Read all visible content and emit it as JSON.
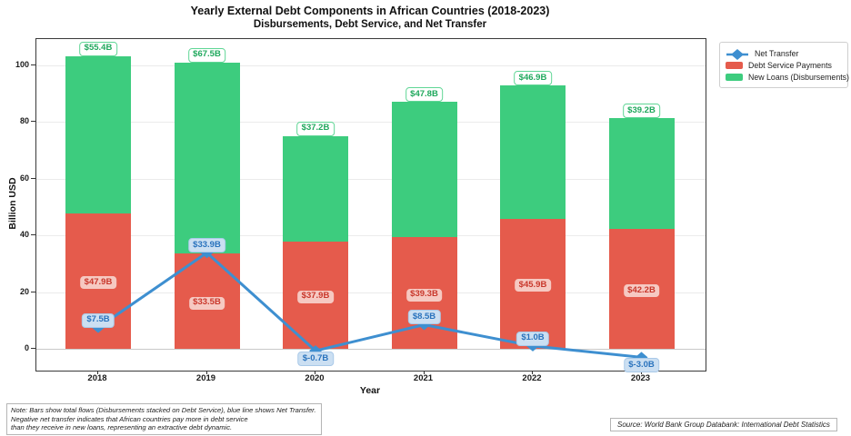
{
  "title": {
    "line1": "Yearly External Debt Components in African Countries (2018-2023)",
    "line2": "Disbursements, Debt Service, and Net Transfer"
  },
  "axes": {
    "ylabel": "Billion USD",
    "xlabel": "Year",
    "yticks": [
      0,
      20,
      40,
      60,
      80,
      100
    ]
  },
  "legend": {
    "items": [
      {
        "label": "Net Transfer",
        "marker": "diamond-line",
        "color": "#3e8fd0"
      },
      {
        "label": "Debt Service Payments",
        "marker": "square",
        "color": "#e55b4c"
      },
      {
        "label": "New Loans (Disbursements)",
        "marker": "square",
        "color": "#3dcc7e"
      }
    ]
  },
  "chart_data": {
    "type": "bar",
    "subtype": "stacked bars with overlaid line",
    "categories": [
      "2018",
      "2019",
      "2020",
      "2021",
      "2022",
      "2023"
    ],
    "series": [
      {
        "name": "Debt Service Payments",
        "type": "bar",
        "stacked": true,
        "color": "#e55b4c",
        "values": [
          47.9,
          33.5,
          37.9,
          39.3,
          45.9,
          42.2
        ],
        "labels": [
          "$47.9B",
          "$33.5B",
          "$37.9B",
          "$39.3B",
          "$45.9B",
          "$42.2B"
        ]
      },
      {
        "name": "New Loans (Disbursements)",
        "type": "bar",
        "stacked": true,
        "color": "#3dcc7e",
        "values": [
          55.4,
          67.5,
          37.2,
          47.8,
          46.9,
          39.2
        ],
        "labels": [
          "$55.4B",
          "$67.5B",
          "$37.2B",
          "$47.8B",
          "$46.9B",
          "$39.2B"
        ]
      },
      {
        "name": "Net Transfer",
        "type": "line",
        "color": "#3e8fd0",
        "values": [
          7.5,
          33.9,
          -0.7,
          8.5,
          1.0,
          -3.0
        ],
        "labels": [
          "$7.5B",
          "$33.9B",
          "$-0.7B",
          "$8.5B",
          "$1.0B",
          "$-3.0B"
        ]
      }
    ],
    "title": "Yearly External Debt Components in African Countries (2018-2023)",
    "subtitle": "Disbursements, Debt Service, and Net Transfer",
    "xlabel": "Year",
    "ylabel": "Billion USD",
    "ylim": [
      -7.7,
      109.3
    ],
    "grid": "horizontal",
    "legend_position": "outside-top-right"
  },
  "colors": {
    "bar_red": "#e55b4c",
    "bar_green": "#3dcc7e",
    "line_blue": "#3e8fd0",
    "red_label_bg": "#f6c9c2",
    "red_label_text": "#c9372b",
    "green_label_bg": "#ffffff",
    "green_label_border": "#5fd695",
    "green_label_text": "#1fa85c",
    "blue_label_bg": "#cbdff2",
    "blue_label_border": "#a9c9e8",
    "blue_label_text": "#2a73bd",
    "grid": "#ebebeb",
    "zero_line": "#c9c9c9",
    "spine": "#3a3a3a"
  },
  "note": {
    "lines": [
      "Note: Bars show total flows (Disbursements stacked on Debt Service), blue line shows Net Transfer.",
      "Negative net transfer indicates that African countries pay more in debt service",
      "than they receive in new loans, representing an extractive debt dynamic."
    ]
  },
  "source": {
    "text": "Source: World Bank Group Databank: International Debt Statistics"
  }
}
